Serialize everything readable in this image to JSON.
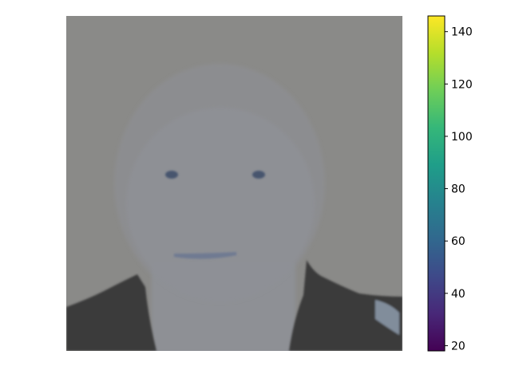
{
  "chart_data": {
    "type": "heatmap",
    "content": "grayscale-like portrait image displayed with imshow (face, hair outline, dark jacket)",
    "colormap": "viridis",
    "colorbar": {
      "vmin": 18,
      "vmax": 146,
      "ticks": [
        20,
        40,
        60,
        80,
        100,
        120,
        140
      ],
      "tick_labels": [
        "20",
        "40",
        "60",
        "80",
        "100",
        "120",
        "140"
      ],
      "gradient_colors": [
        "#440154",
        "#482878",
        "#3e4989",
        "#31688e",
        "#26828e",
        "#1f9e89",
        "#35b779",
        "#6ece58",
        "#b5de2b",
        "#fde725"
      ]
    },
    "axes_visible": false,
    "image_palette": {
      "background": "#8a8a88",
      "face": "#8e9097",
      "jacket": "#3b3a3a",
      "eyes": "#46556e",
      "mouth": "#6f7a92"
    }
  }
}
